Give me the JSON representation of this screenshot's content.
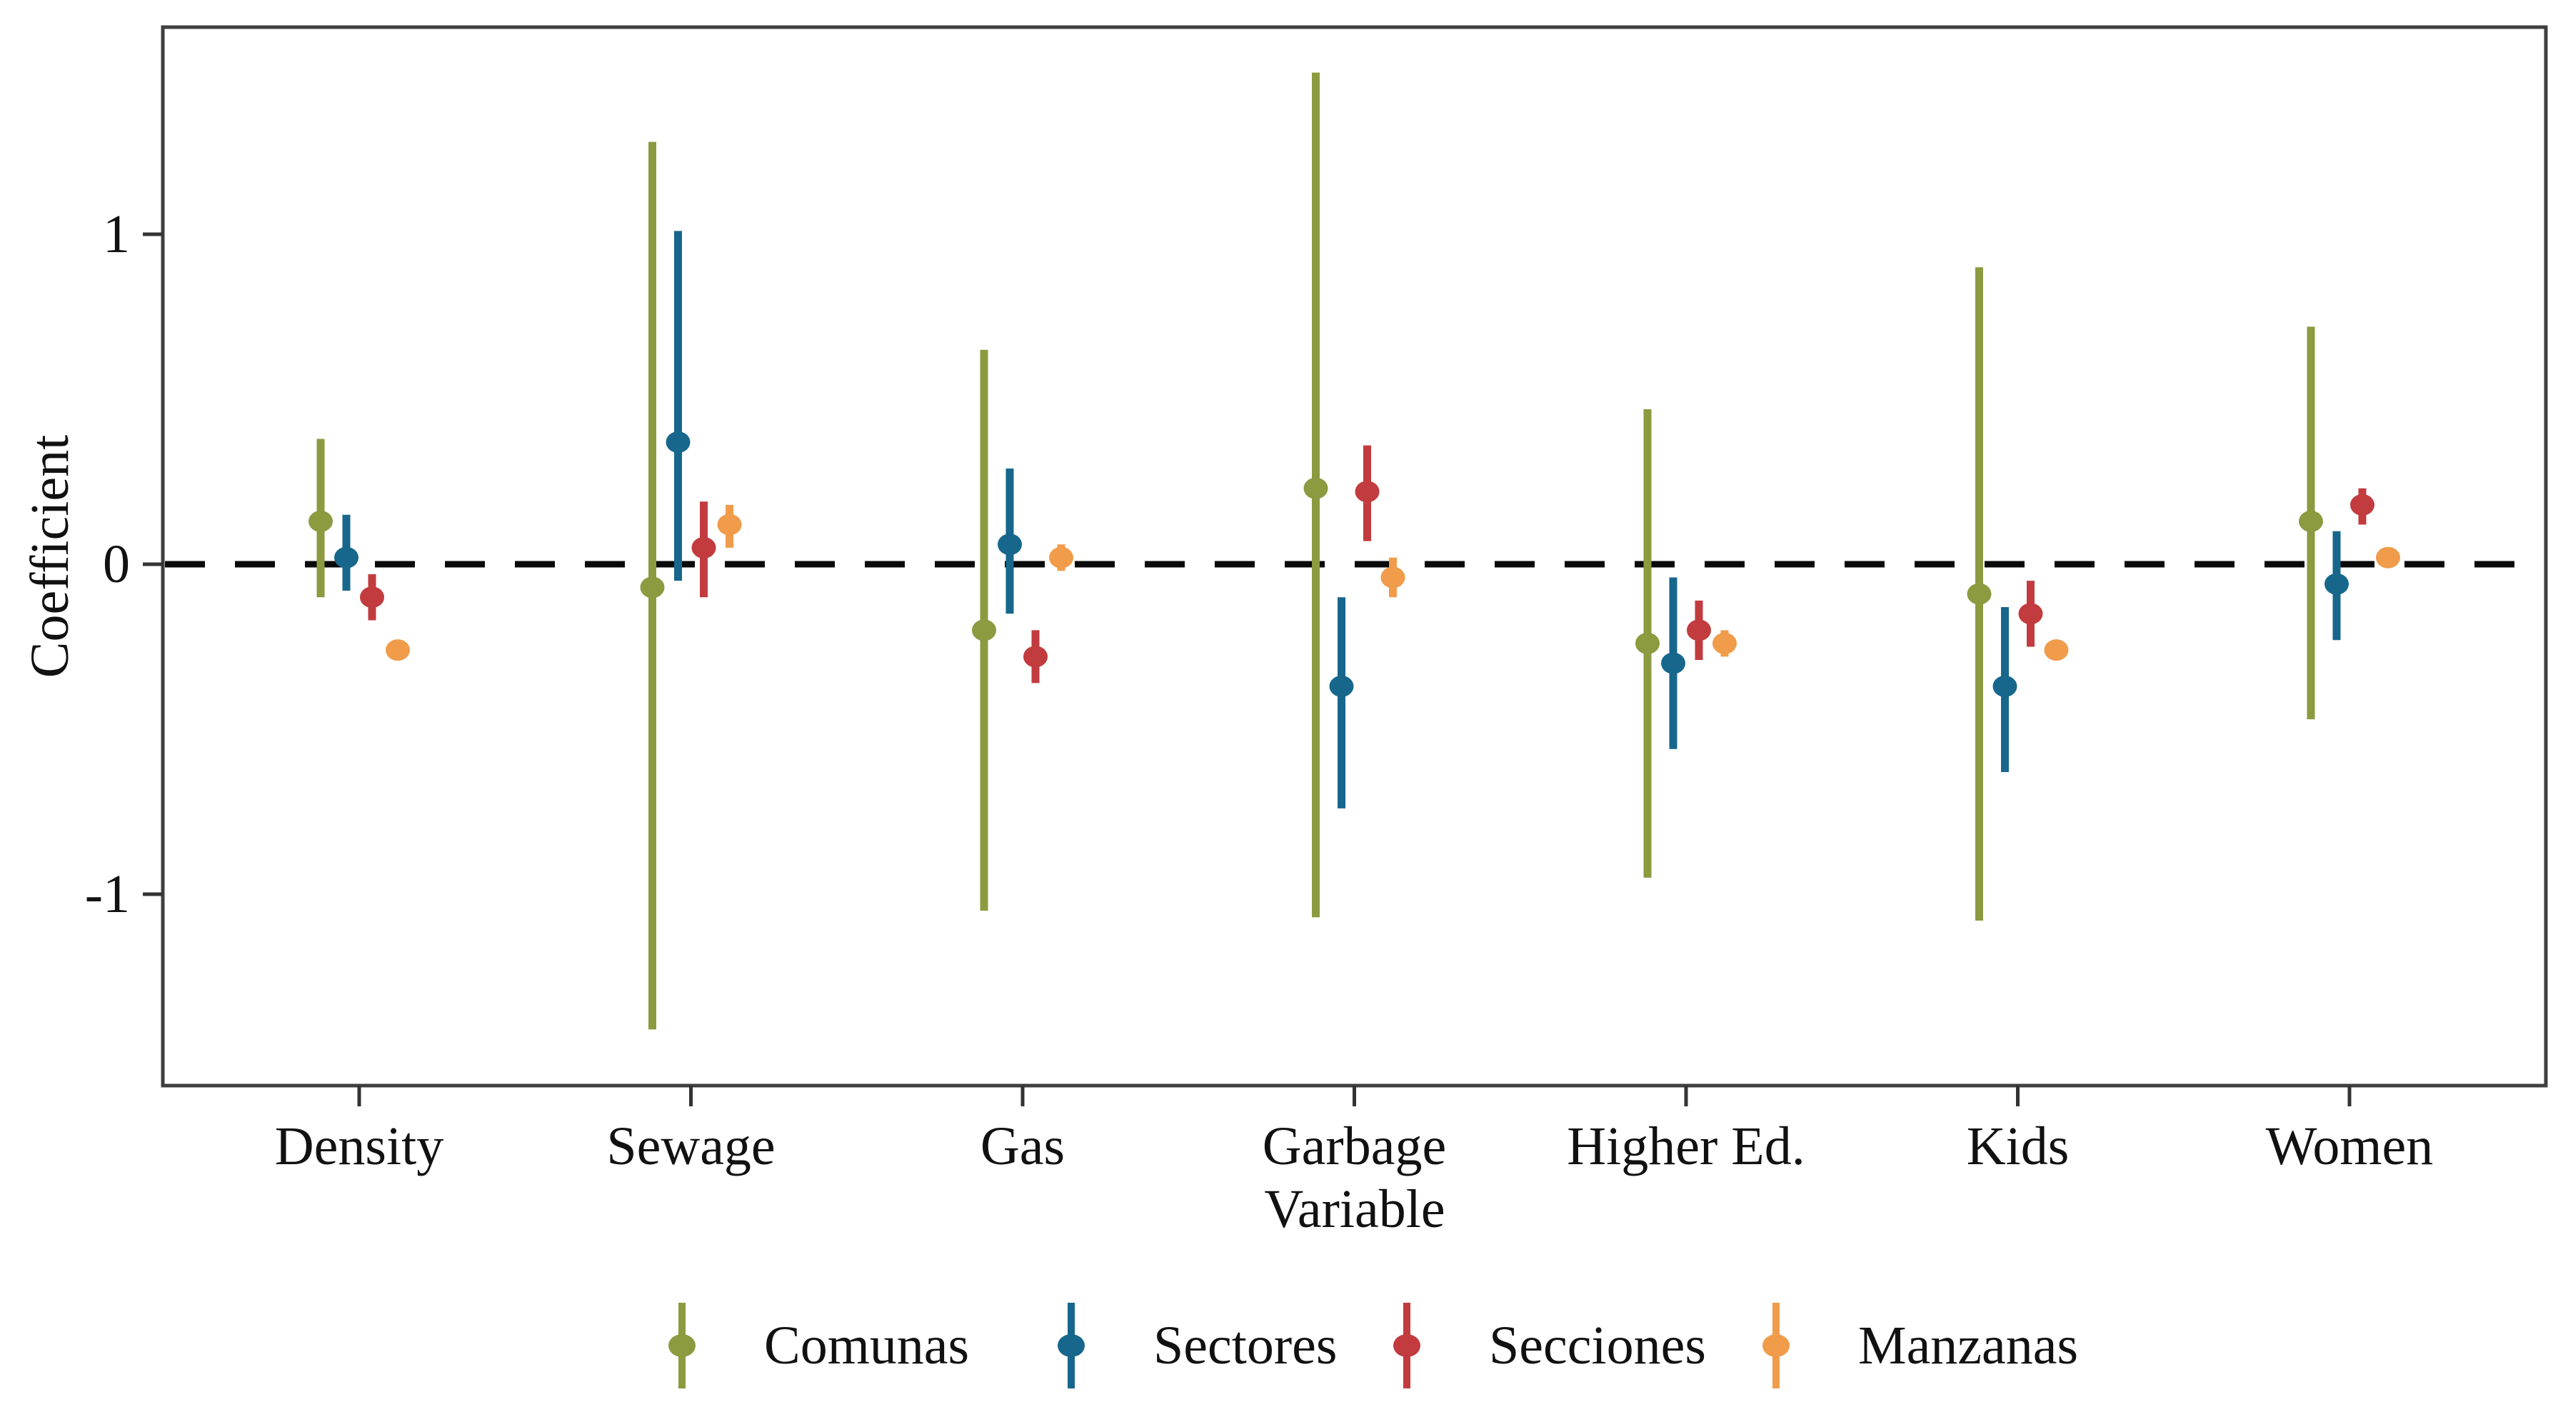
{
  "figure": {
    "background": "#ffffff",
    "panel_border_color": "#3f3f3f",
    "tick_color": "#333333",
    "text_color": "#111111"
  },
  "chart_data": {
    "type": "pointrange",
    "title": "",
    "xlabel": "Variable",
    "ylabel": "Coefficient",
    "categories": [
      "Density",
      "Sewage",
      "Gas",
      "Garbage",
      "Higher Ed.",
      "Kids",
      "Women"
    ],
    "yticks": [
      1,
      0,
      -1
    ],
    "ytick_labels": [
      "1",
      "0",
      "-1"
    ],
    "ylim": [
      -1.58,
      1.63
    ],
    "grid": "off",
    "zero_line": {
      "value": 0,
      "style": "dashed",
      "color": "#0a0a0a"
    },
    "legend_position": "bottom",
    "series": [
      {
        "name": "Comunas",
        "color": "#8C9A40",
        "y": [
          0.13,
          -0.07,
          -0.2,
          0.23,
          -0.24,
          -0.09,
          0.13
        ],
        "lo": [
          -0.1,
          -1.41,
          -1.05,
          -1.07,
          -0.95,
          -1.08,
          -0.47
        ],
        "hi": [
          0.38,
          1.28,
          0.65,
          1.49,
          0.47,
          0.9,
          0.72
        ]
      },
      {
        "name": "Sectores",
        "color": "#17678C",
        "y": [
          0.02,
          0.37,
          0.06,
          -0.37,
          -0.3,
          -0.37,
          -0.06
        ],
        "lo": [
          -0.08,
          -0.05,
          -0.15,
          -0.74,
          -0.56,
          -0.63,
          -0.23
        ],
        "hi": [
          0.15,
          1.01,
          0.29,
          -0.1,
          -0.04,
          -0.13,
          0.1
        ]
      },
      {
        "name": "Secciones",
        "color": "#C23B3E",
        "y": [
          -0.1,
          0.05,
          -0.28,
          0.22,
          -0.2,
          -0.15,
          0.18
        ],
        "lo": [
          -0.17,
          -0.1,
          -0.36,
          0.07,
          -0.29,
          -0.25,
          0.12
        ],
        "hi": [
          -0.03,
          0.19,
          -0.2,
          0.36,
          -0.11,
          -0.05,
          0.23
        ]
      },
      {
        "name": "Manzanas",
        "color": "#F09C4B",
        "y": [
          -0.26,
          0.12,
          0.02,
          -0.04,
          -0.24,
          -0.26,
          0.02
        ],
        "lo": [
          -0.29,
          0.05,
          -0.02,
          -0.1,
          -0.28,
          -0.29,
          -0.01
        ],
        "hi": [
          -0.23,
          0.18,
          0.06,
          0.02,
          -0.2,
          -0.23,
          0.05
        ]
      }
    ]
  }
}
